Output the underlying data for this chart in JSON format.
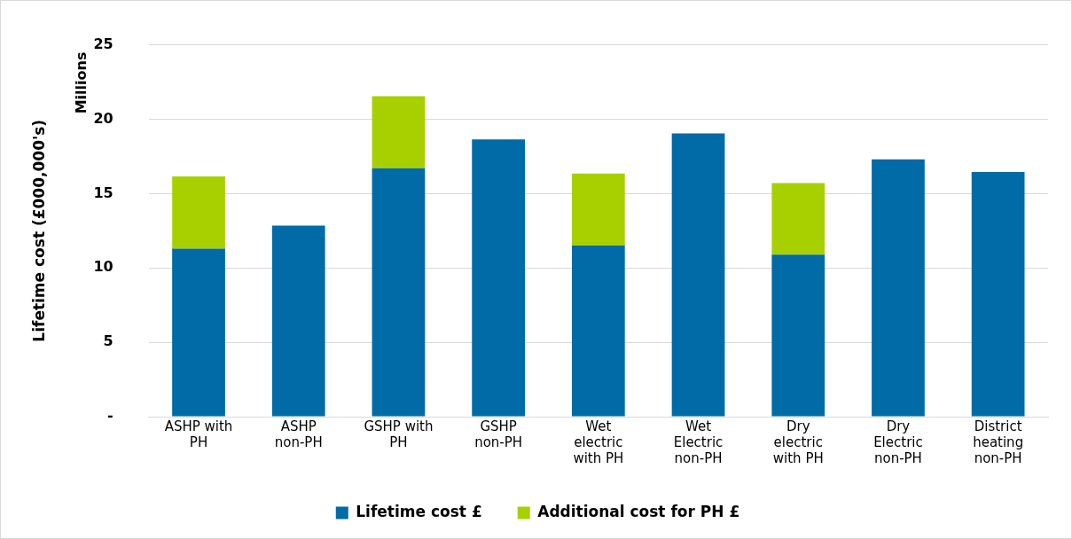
{
  "chart_data": {
    "type": "bar",
    "stacked": true,
    "categories": [
      "ASHP with PH",
      "ASHP non-PH",
      "GSHP with PH",
      "GSHP non-PH",
      "Wet electric with PH",
      "Wet Electric non-PH",
      "Dry electric with PH",
      "Dry Electric non-PH",
      "District heating non-PH"
    ],
    "series": [
      {
        "name": "Lifetime cost £",
        "color": "#006ba6",
        "values": [
          11.3,
          12.85,
          16.7,
          18.65,
          11.5,
          19.05,
          10.9,
          17.3,
          16.45
        ]
      },
      {
        "name": "Additional cost for PH £",
        "color": "#a8d000",
        "values": [
          4.85,
          null,
          4.85,
          null,
          4.85,
          null,
          4.8,
          null,
          null
        ]
      }
    ],
    "ylabel": "Lifetime cost (£000,000's)",
    "annotations": [
      "Millions"
    ],
    "ylim": [
      0,
      25
    ],
    "yticks": [
      {
        "value": 0,
        "label": "-"
      },
      5,
      10,
      15,
      20,
      25
    ],
    "grid": "y",
    "legend": "bottom"
  }
}
